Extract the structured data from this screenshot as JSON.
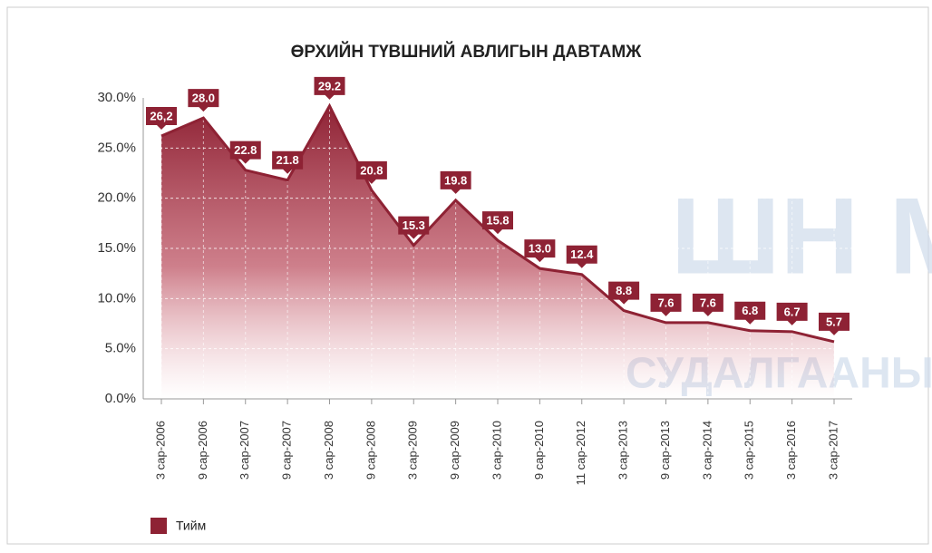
{
  "chart_data": {
    "type": "area",
    "title": "ӨРХИЙН ТҮВШНИЙ АВЛИГЫН ДАВТАМЖ",
    "categories": [
      "3 сар-2006",
      "9 сар-2006",
      "3 сар-2007",
      "9 сар-2007",
      "3 сар-2008",
      "9 сар-2008",
      "3 сар-2009",
      "9 сар-2009",
      "3 сар-2010",
      "9 сар-2010",
      "11 сар-2012",
      "3 сар-2013",
      "9 сар-2013",
      "3 сар-2014",
      "3 сар-2015",
      "3 сар-2016",
      "3 сар-2017"
    ],
    "series": [
      {
        "name": "Тийм",
        "color": "#8e2234",
        "values": [
          26.2,
          28.0,
          22.8,
          21.8,
          29.2,
          20.8,
          15.3,
          19.8,
          15.8,
          13.0,
          12.4,
          8.8,
          7.6,
          7.6,
          6.8,
          6.7,
          5.7
        ],
        "value_labels": [
          "26,2",
          "28.0",
          "22.8",
          "21.8",
          "29.2",
          "20.8",
          "15.3",
          "19.8",
          "15.8",
          "13.0",
          "12.4",
          "8.8",
          "7.6",
          "7.6",
          "6.8",
          "6.7",
          "5.7"
        ]
      }
    ],
    "ylim": [
      0,
      30
    ],
    "yticks": [
      {
        "value": 0,
        "label": "0.0%"
      },
      {
        "value": 5,
        "label": "5.0%"
      },
      {
        "value": 10,
        "label": "10.0%"
      },
      {
        "value": 15,
        "label": "15.0%"
      },
      {
        "value": 20,
        "label": "20.0%"
      },
      {
        "value": 25,
        "label": "25.0%"
      },
      {
        "value": 30,
        "label": "30.0%"
      }
    ],
    "grid": true,
    "legend": "bottom-left",
    "watermark": [
      "ШН М",
      "СУДАЛГААНЫ С"
    ]
  }
}
